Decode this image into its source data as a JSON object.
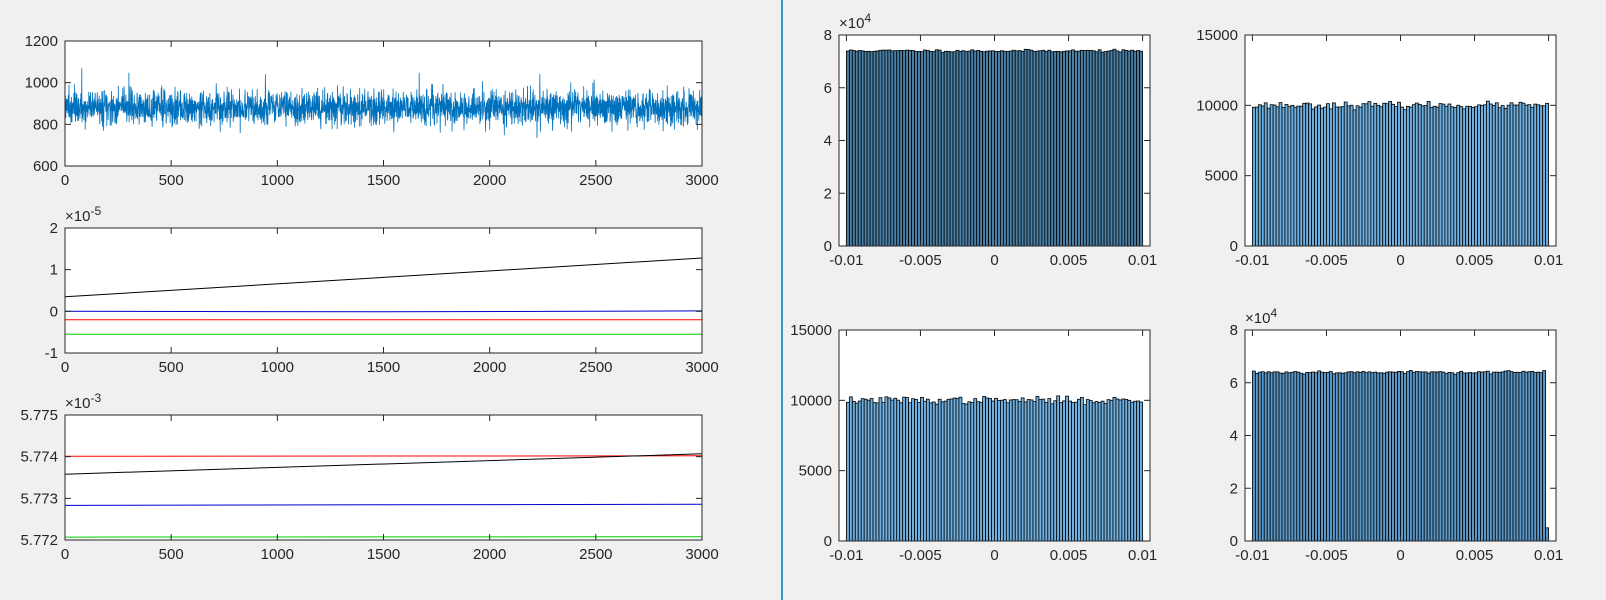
{
  "figure": {
    "background": "#f0f0f0",
    "divider_color": "#0072bd"
  },
  "chart_data": [
    {
      "id": "ts-noise",
      "type": "line",
      "title": "",
      "xlabel": "",
      "ylabel": "",
      "xlim": [
        0,
        3000
      ],
      "ylim": [
        600,
        1200
      ],
      "xticks": [
        0,
        500,
        1000,
        1500,
        2000,
        2500,
        3000
      ],
      "yticks": [
        600,
        800,
        1000,
        1200
      ],
      "xtick_labels": [
        "0",
        "500",
        "1000",
        "1500",
        "2000",
        "2500",
        "3000"
      ],
      "ytick_labels": [
        "600",
        "800",
        "1000",
        "1200"
      ],
      "exponent_label": "",
      "series": [
        {
          "color": "#0072bd",
          "kind": "noise",
          "n": 3000,
          "mean": 880,
          "std": 42,
          "seed": 7
        }
      ]
    },
    {
      "id": "ts-small",
      "type": "line",
      "title": "",
      "xlabel": "",
      "ylabel": "",
      "xlim": [
        0,
        3000
      ],
      "ylim": [
        -1,
        2
      ],
      "xticks": [
        0,
        500,
        1000,
        1500,
        2000,
        2500,
        3000
      ],
      "yticks": [
        -1,
        0,
        1,
        2
      ],
      "xtick_labels": [
        "0",
        "500",
        "1000",
        "1500",
        "2000",
        "2500",
        "3000"
      ],
      "ytick_labels": [
        "-1",
        "0",
        "1",
        "2"
      ],
      "exponent_label": "×10-5",
      "exponent_base": "×10",
      "exponent_power": "-5",
      "series": [
        {
          "color": "#000000",
          "x": [
            0,
            3000
          ],
          "y": [
            0.35,
            1.28
          ]
        },
        {
          "color": "#0000cc",
          "x": [
            0,
            1500,
            3000
          ],
          "y": [
            0.0,
            -0.01,
            0.01
          ]
        },
        {
          "color": "#ff0000",
          "x": [
            0,
            3000
          ],
          "y": [
            -0.2,
            -0.2
          ]
        },
        {
          "color": "#00cc00",
          "x": [
            0,
            3000
          ],
          "y": [
            -0.55,
            -0.55
          ]
        }
      ]
    },
    {
      "id": "ts-const",
      "type": "line",
      "title": "",
      "xlabel": "",
      "ylabel": "",
      "xlim": [
        0,
        3000
      ],
      "ylim": [
        5.772,
        5.775
      ],
      "xticks": [
        0,
        500,
        1000,
        1500,
        2000,
        2500,
        3000
      ],
      "yticks": [
        5.772,
        5.773,
        5.774,
        5.775
      ],
      "xtick_labels": [
        "0",
        "500",
        "1000",
        "1500",
        "2000",
        "2500",
        "3000"
      ],
      "ytick_labels": [
        "5.772",
        "5.773",
        "5.774",
        "5.775"
      ],
      "exponent_label": "×10-3",
      "exponent_base": "×10",
      "exponent_power": "-3",
      "series": [
        {
          "color": "#ff0000",
          "x": [
            0,
            3000
          ],
          "y": [
            5.77401,
            5.77402
          ]
        },
        {
          "color": "#000000",
          "x": [
            0,
            3000
          ],
          "y": [
            5.77358,
            5.77407
          ]
        },
        {
          "color": "#0000cc",
          "x": [
            0,
            3000
          ],
          "y": [
            5.77283,
            5.77286
          ]
        },
        {
          "color": "#00cc00",
          "x": [
            0,
            3000
          ],
          "y": [
            5.77207,
            5.77208
          ]
        }
      ]
    },
    {
      "id": "hist-1",
      "type": "bar",
      "title": "",
      "xlabel": "",
      "ylabel": "",
      "xlim": [
        -0.0105,
        0.0105
      ],
      "ylim": [
        0,
        80000
      ],
      "xticks": [
        -0.01,
        -0.005,
        0,
        0.005,
        0.01
      ],
      "yticks": [
        0,
        20000,
        40000,
        60000,
        80000
      ],
      "xtick_labels": [
        "-0.01",
        "-0.005",
        "0",
        "0.005",
        "0.01"
      ],
      "ytick_labels": [
        "0",
        "2",
        "4",
        "6",
        "8"
      ],
      "exponent_label": "×104",
      "exponent_base": "×10",
      "exponent_power": "4",
      "bin_range": [
        -0.01,
        0.01
      ],
      "bins": 100,
      "level": 74000,
      "jitter": 250,
      "seed": 11,
      "bar_fill": "#4a7fa6",
      "bar_edge": "#000000",
      "last_bin": null
    },
    {
      "id": "hist-2",
      "type": "bar",
      "title": "",
      "xlabel": "",
      "ylabel": "",
      "xlim": [
        -0.0105,
        0.0105
      ],
      "ylim": [
        0,
        15000
      ],
      "xticks": [
        -0.01,
        -0.005,
        0,
        0.005,
        0.01
      ],
      "yticks": [
        0,
        5000,
        10000,
        15000
      ],
      "xtick_labels": [
        "-0.01",
        "-0.005",
        "0",
        "0.005",
        "0.01"
      ],
      "ytick_labels": [
        "0",
        "5000",
        "10000",
        "15000"
      ],
      "exponent_label": "",
      "bin_range": [
        -0.01,
        0.01
      ],
      "bins": 100,
      "level": 10000,
      "jitter": 120,
      "seed": 23,
      "bar_fill": "#6fb0e0",
      "bar_edge": "#000000",
      "last_bin": null
    },
    {
      "id": "hist-3",
      "type": "bar",
      "title": "",
      "xlabel": "",
      "ylabel": "",
      "xlim": [
        -0.0105,
        0.0105
      ],
      "ylim": [
        0,
        15000
      ],
      "xticks": [
        -0.01,
        -0.005,
        0,
        0.005,
        0.01
      ],
      "yticks": [
        0,
        5000,
        10000,
        15000
      ],
      "xtick_labels": [
        "-0.01",
        "-0.005",
        "0",
        "0.005",
        "0.01"
      ],
      "ytick_labels": [
        "0",
        "5000",
        "10000",
        "15000"
      ],
      "exponent_label": "",
      "bin_range": [
        -0.01,
        0.01
      ],
      "bins": 100,
      "level": 10000,
      "jitter": 130,
      "seed": 37,
      "bar_fill": "#6fb0e0",
      "bar_edge": "#000000",
      "last_bin": null
    },
    {
      "id": "hist-4",
      "type": "bar",
      "title": "",
      "xlabel": "",
      "ylabel": "",
      "xlim": [
        -0.0105,
        0.0105
      ],
      "ylim": [
        0,
        80000
      ],
      "xticks": [
        -0.01,
        -0.005,
        0,
        0.005,
        0.01
      ],
      "yticks": [
        0,
        20000,
        40000,
        60000,
        80000
      ],
      "xtick_labels": [
        "-0.01",
        "-0.005",
        "0",
        "0.005",
        "0.01"
      ],
      "ytick_labels": [
        "0",
        "2",
        "4",
        "6",
        "8"
      ],
      "exponent_label": "×104",
      "exponent_base": "×10",
      "exponent_power": "4",
      "bin_range": [
        -0.01,
        0.01
      ],
      "bins": 100,
      "level": 64000,
      "jitter": 300,
      "seed": 53,
      "bar_fill": "#5b98c8",
      "bar_edge": "#000000",
      "last_bin": 5000
    }
  ]
}
